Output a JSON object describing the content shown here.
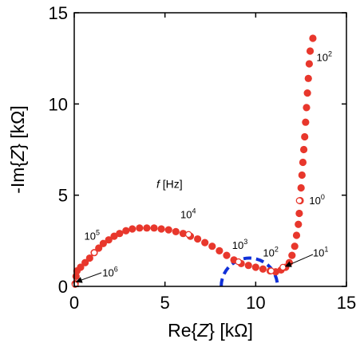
{
  "chart_data": {
    "type": "scatter",
    "title": "",
    "xlabel": {
      "pre": "Re{",
      "var": "Z",
      "post": "} [kΩ]"
    },
    "ylabel": {
      "pre": "-Im{",
      "var": "Z",
      "post": "} [kΩ]"
    },
    "xlim": [
      0,
      15
    ],
    "ylim": [
      0,
      15
    ],
    "xticks": [
      "0",
      "5",
      "10",
      "15"
    ],
    "yticks": [
      "0",
      "5",
      "10",
      "15"
    ],
    "grid": false,
    "marker_color": "#e8372c",
    "semicircle_color": "#1030d8",
    "series": [
      {
        "points": [
          [
            0.05,
            0.15
          ],
          [
            0.1,
            0.55
          ],
          [
            0.15,
            0.85
          ],
          [
            0.35,
            1.05
          ],
          [
            0.6,
            1.3
          ],
          [
            0.85,
            1.55
          ],
          [
            1.1,
            1.85
          ],
          [
            1.35,
            2.1
          ],
          [
            1.6,
            2.35
          ],
          [
            1.9,
            2.55
          ],
          [
            2.2,
            2.75
          ],
          [
            2.5,
            2.9
          ],
          [
            2.85,
            3.05
          ],
          [
            3.2,
            3.15
          ],
          [
            3.6,
            3.2
          ],
          [
            4.0,
            3.2
          ],
          [
            4.4,
            3.2
          ],
          [
            4.8,
            3.15
          ],
          [
            5.2,
            3.1
          ],
          [
            5.6,
            3.0
          ],
          [
            6.0,
            2.9
          ],
          [
            6.4,
            2.75
          ],
          [
            6.8,
            2.6
          ],
          [
            7.2,
            2.4
          ],
          [
            7.6,
            2.2
          ],
          [
            8.0,
            1.95
          ],
          [
            8.4,
            1.7
          ],
          [
            8.8,
            1.45
          ],
          [
            9.2,
            1.25
          ],
          [
            9.6,
            1.15
          ],
          [
            10.0,
            1.05
          ],
          [
            10.4,
            0.95
          ],
          [
            10.8,
            0.85
          ],
          [
            11.1,
            0.8
          ],
          [
            11.4,
            0.9
          ],
          [
            11.65,
            1.05
          ],
          [
            11.85,
            1.3
          ],
          [
            12.0,
            1.7
          ],
          [
            12.15,
            2.2
          ],
          [
            12.25,
            2.8
          ],
          [
            12.35,
            3.4
          ],
          [
            12.4,
            4.0
          ],
          [
            12.45,
            4.7
          ],
          [
            12.5,
            5.4
          ],
          [
            12.55,
            6.1
          ],
          [
            12.6,
            6.8
          ],
          [
            12.65,
            7.5
          ],
          [
            12.7,
            8.2
          ],
          [
            12.75,
            9.0
          ],
          [
            12.8,
            9.8
          ],
          [
            12.85,
            10.6
          ],
          [
            12.9,
            11.4
          ],
          [
            12.95,
            12.2
          ],
          [
            13.0,
            12.9
          ],
          [
            13.15,
            13.6
          ]
        ]
      }
    ],
    "open_markers": [
      [
        0.05,
        0.1
      ],
      [
        1.1,
        1.85
      ],
      [
        6.3,
        2.85
      ],
      [
        9.05,
        1.35
      ],
      [
        10.85,
        0.85
      ],
      [
        11.5,
        1.05
      ],
      [
        12.4,
        4.7
      ]
    ],
    "semicircle": {
      "center": [
        9.65,
        0
      ],
      "radius": 1.55
    },
    "frequency_title": {
      "italic": "f",
      "rest": " [Hz]"
    },
    "frequency_labels": [
      {
        "base": "10",
        "exp": "6",
        "x": 1.55,
        "y": 0.55
      },
      {
        "base": "10",
        "exp": "5",
        "x": 0.55,
        "y": 2.55
      },
      {
        "base": "10",
        "exp": "4",
        "x": 5.85,
        "y": 3.75
      },
      {
        "base": "10",
        "exp": "3",
        "x": 8.7,
        "y": 2.05
      },
      {
        "base": "10",
        "exp": "2",
        "x": 10.4,
        "y": 1.65
      },
      {
        "base": "10",
        "exp": "1",
        "x": 13.15,
        "y": 1.65
      },
      {
        "base": "10",
        "exp": "0",
        "x": 12.95,
        "y": 4.5
      },
      {
        "base": "10",
        "exp": "2",
        "x": 13.35,
        "y": 12.35
      }
    ],
    "frequency_title_position": [
      5.25,
      5.4
    ],
    "arrows": [
      {
        "from": [
          1.5,
          0.75
        ],
        "to": [
          0.12,
          0.25
        ]
      },
      {
        "from": [
          13.15,
          1.75
        ],
        "to": [
          11.65,
          1.1
        ]
      }
    ]
  }
}
